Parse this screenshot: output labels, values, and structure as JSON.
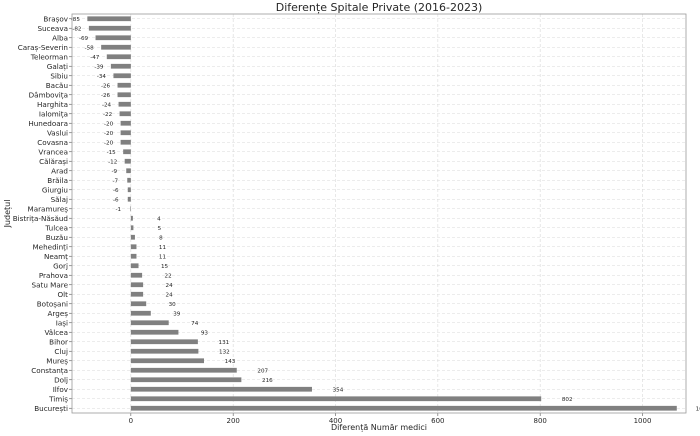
{
  "chart_data": {
    "type": "bar",
    "orientation": "horizontal",
    "title": "Diferențe Spitale Private (2016-2023)",
    "xlabel": "Diferență Număr medici",
    "ylabel": "Județul",
    "xlim": [
      -115,
      1085
    ],
    "xticks": [
      0,
      200,
      400,
      600,
      800,
      1000
    ],
    "grid": true,
    "bar_color": "#808080",
    "categories": [
      "Brașov",
      "Suceava",
      "Alba",
      "Caraș-Severin",
      "Teleorman",
      "Galați",
      "Sibiu",
      "Bacău",
      "Dâmbovița",
      "Harghita",
      "Ialomița",
      "Hunedoara",
      "Vaslui",
      "Covasna",
      "Vrancea",
      "Călărași",
      "Arad",
      "Brăila",
      "Giurgiu",
      "Sălaj",
      "Maramureș",
      "Bistrița-Năsăud",
      "Tulcea",
      "Buzău",
      "Mehedinți",
      "Neamț",
      "Gorj",
      "Prahova",
      "Satu Mare",
      "Olt",
      "Botoșani",
      "Argeș",
      "Iași",
      "Vâlcea",
      "Bihor",
      "Cluj",
      "Mureș",
      "Constanța",
      "Dolj",
      "Ilfov",
      "Timiș",
      "București"
    ],
    "values": [
      -85,
      -82,
      -69,
      -58,
      -47,
      -39,
      -34,
      -26,
      -26,
      -24,
      -22,
      -20,
      -20,
      -20,
      -15,
      -12,
      -9,
      -7,
      -6,
      -6,
      -1,
      4,
      5,
      8,
      11,
      11,
      15,
      22,
      24,
      24,
      30,
      39,
      74,
      93,
      131,
      132,
      143,
      207,
      216,
      354,
      802,
      1067
    ]
  }
}
